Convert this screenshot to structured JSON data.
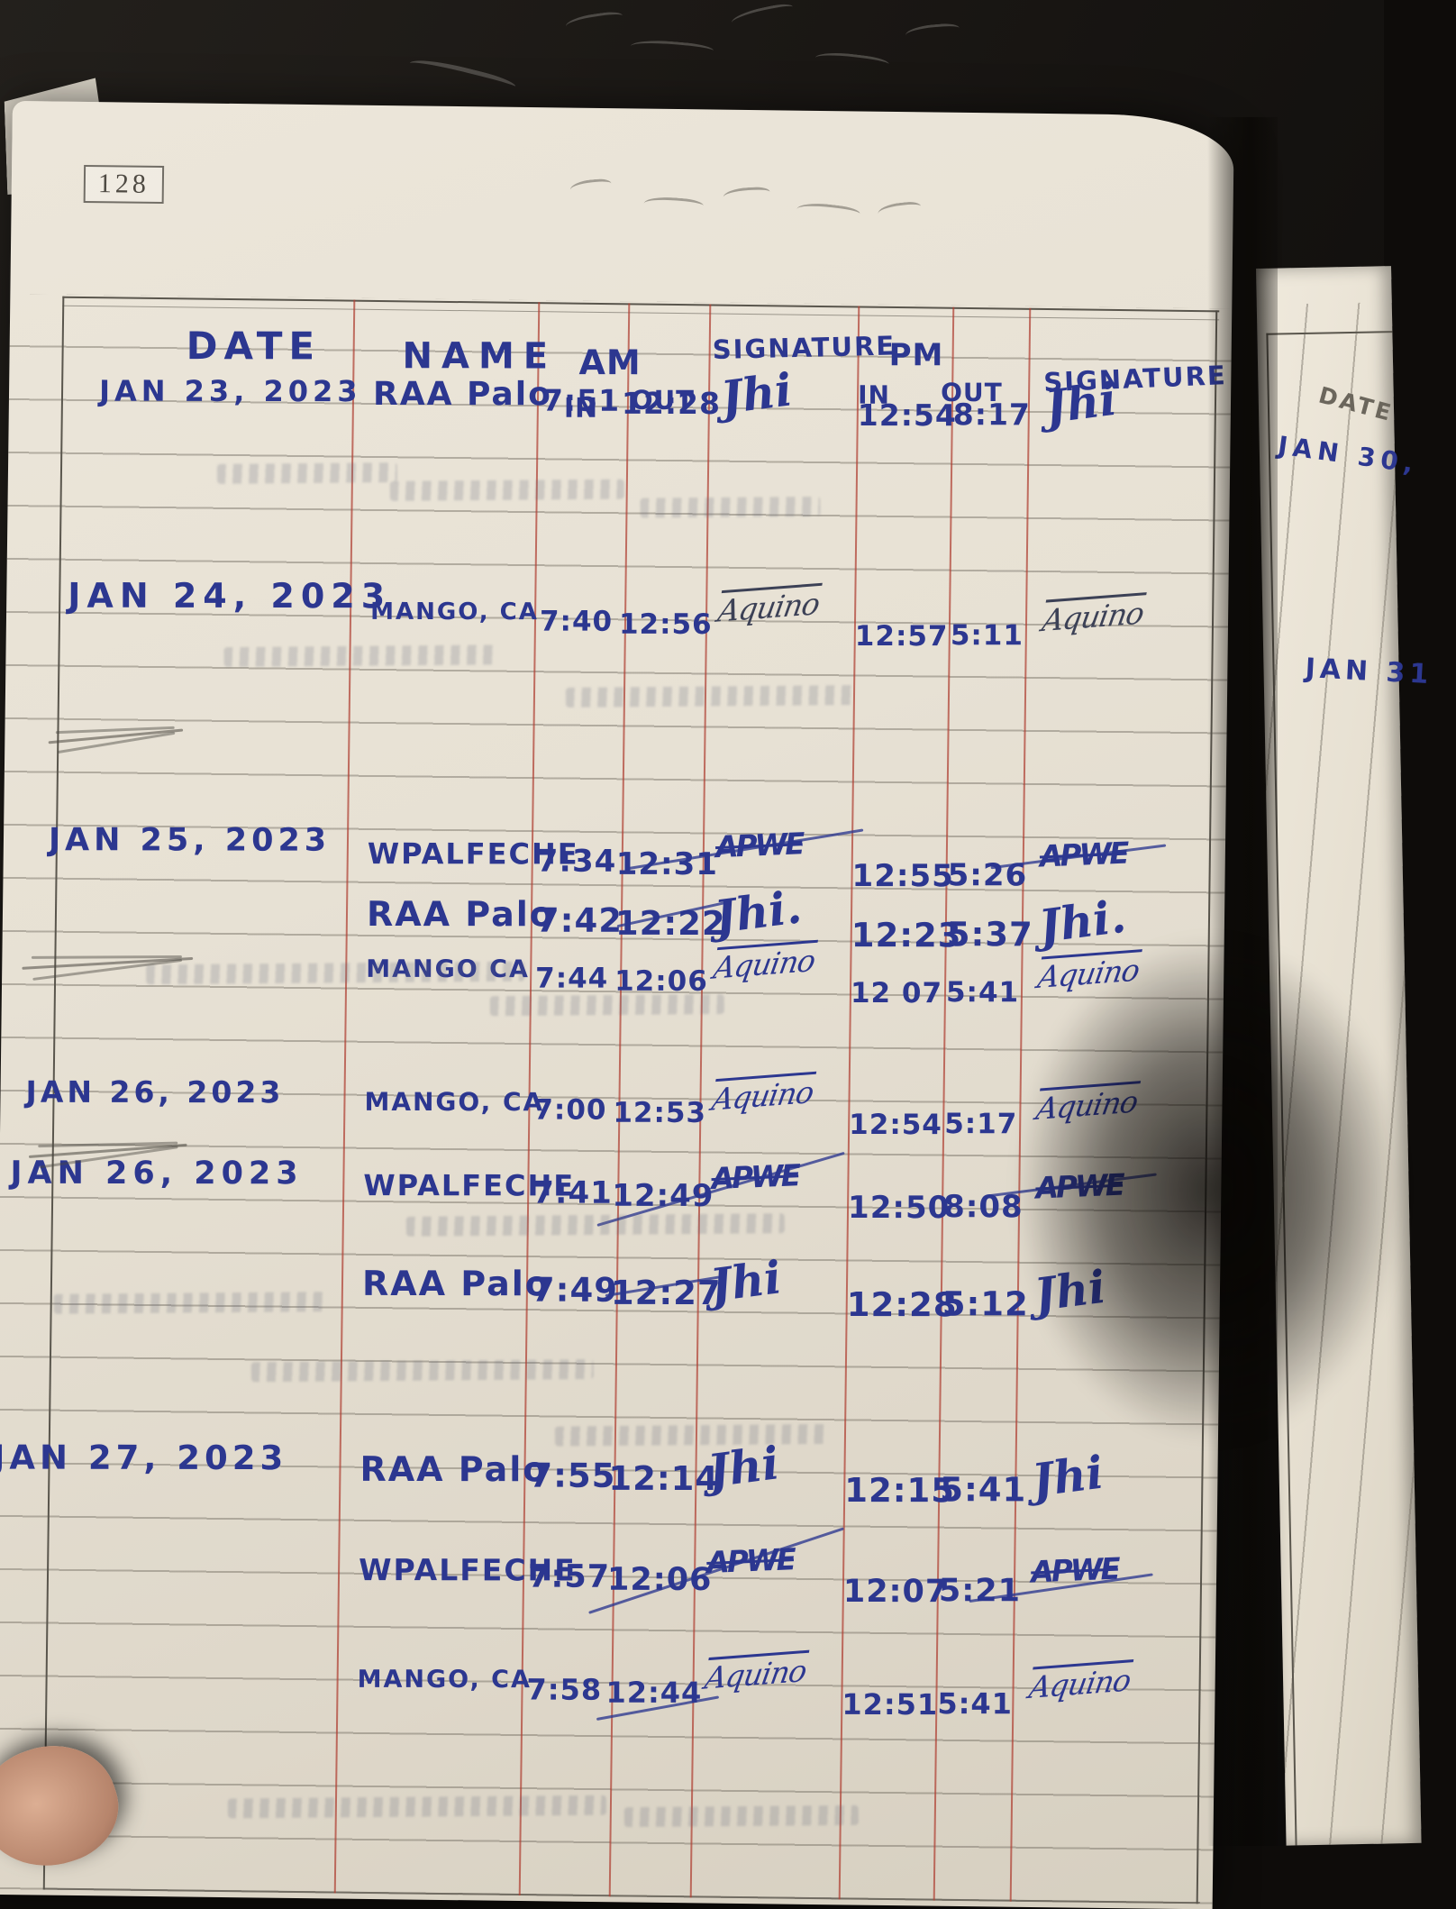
{
  "page_number": "128",
  "header": {
    "date": "DATE",
    "name": "NAME",
    "am": "AM",
    "pm": "PM",
    "in_am": "IN",
    "out_am": "OUT",
    "in_pm": "IN",
    "out_pm": "OUT",
    "signature_am": "SIGNATURE",
    "signature_pm": "SIGNATURE"
  },
  "entries": [
    {
      "date": "JAN 23, 2023",
      "name": "RAA Palo",
      "am_in": "7:51",
      "am_out": "12:28",
      "sig_am": "Jhi",
      "pm_in": "12:54",
      "pm_out": "8:17",
      "sig_pm": "Jhi"
    },
    {
      "date": "JAN 24, 2023",
      "name": "MANGO, CA",
      "am_in": "7:40",
      "am_out": "12:56",
      "sig_am": "Aquino",
      "pm_in": "12:57",
      "pm_out": "5:11",
      "sig_pm": "Aquino"
    },
    {
      "date": "JAN 25, 2023",
      "name": "WPALFECHE",
      "am_in": "7:34",
      "am_out": "12:31",
      "sig_am": "APWE",
      "pm_in": "12:55",
      "pm_out": "5:26",
      "sig_pm": "APWE"
    },
    {
      "date": "",
      "name": "RAA Palo",
      "am_in": "7:42",
      "am_out": "12:22",
      "sig_am": "Jhi.",
      "pm_in": "12:23",
      "pm_out": "5:37",
      "sig_pm": "Jhi."
    },
    {
      "date": "",
      "name": "MANGO CA",
      "am_in": "7:44",
      "am_out": "12:06",
      "sig_am": "Aquino",
      "pm_in": "12 07",
      "pm_out": "5:41",
      "sig_pm": "Aquino"
    },
    {
      "date": "JAN 26, 2023",
      "name": "MANGO, CA",
      "am_in": "7:00",
      "am_out": "12:53",
      "sig_am": "Aquino",
      "pm_in": "12:54",
      "pm_out": "5:17",
      "sig_pm": "Aquino"
    },
    {
      "date": "JAN 26, 2023",
      "name": "WPALFECHE",
      "am_in": "7:41",
      "am_out": "12:49",
      "sig_am": "APWE",
      "pm_in": "12:50",
      "pm_out": "8:08",
      "sig_pm": "APWE"
    },
    {
      "date": "",
      "name": "RAA Palo",
      "am_in": "7:49",
      "am_out": "12:27",
      "sig_am": "Jhi",
      "pm_in": "12:28",
      "pm_out": "5:12",
      "sig_pm": "Jhi"
    },
    {
      "date": "JAN 27, 2023",
      "name": "RAA Palo",
      "am_in": "7:55",
      "am_out": "12:14",
      "sig_am": "Jhi",
      "pm_in": "12:15",
      "pm_out": "5:41",
      "sig_pm": "Jhi"
    },
    {
      "date": "",
      "name": "WPALFECHE",
      "am_in": "7:57",
      "am_out": "12:06",
      "sig_am": "APWE",
      "pm_in": "12:07",
      "pm_out": "5:21",
      "sig_pm": "APWE"
    },
    {
      "date": "",
      "name": "MANGO, CA",
      "am_in": "7:58",
      "am_out": "12:44",
      "sig_am": "Aquino",
      "pm_in": "12:51",
      "pm_out": "5:41",
      "sig_pm": "Aquino"
    }
  ],
  "next_page": {
    "date_header": "DATE",
    "entry_1": "JAN 30,",
    "entry_2": "JAN 31"
  },
  "colors": {
    "ink_blue": "#2c3790",
    "red_rule": "#ae3e32",
    "paper": "#e7e1d4",
    "pencil": "#5a564d"
  }
}
